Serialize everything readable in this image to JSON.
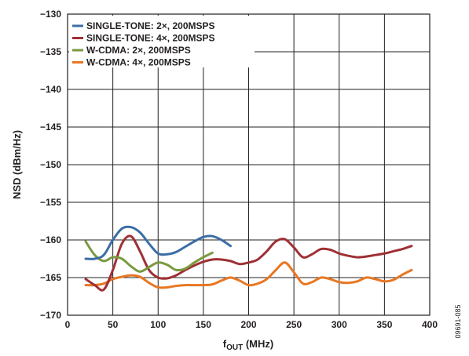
{
  "chart_data": {
    "type": "line",
    "title": "",
    "xlabel_main": "f",
    "xlabel_sub": "OUT",
    "xlabel_unit": " (MHz)",
    "ylabel": "NSD (dBm/Hz)",
    "xlim": [
      0,
      400
    ],
    "ylim": [
      -170,
      -130
    ],
    "xticks": [
      0,
      50,
      100,
      150,
      200,
      250,
      300,
      350,
      400
    ],
    "yticks": [
      -130,
      -135,
      -140,
      -145,
      -150,
      -155,
      -160,
      -165,
      -170
    ],
    "xtick_labels": [
      "0",
      "50",
      "100",
      "150",
      "200",
      "250",
      "300",
      "350",
      "400"
    ],
    "ytick_labels": [
      "−130",
      "−135",
      "−140",
      "−145",
      "−150",
      "−155",
      "−160",
      "−165",
      "−170"
    ],
    "grid": true,
    "legend_position": "top-left",
    "figure_note": "09691-085",
    "series": [
      {
        "name": "SINGLE-TONE: 2×, 200MSPS",
        "color": "#3a6ea5",
        "x": [
          20,
          30,
          40,
          50,
          60,
          70,
          80,
          90,
          100,
          110,
          120,
          130,
          140,
          150,
          160,
          170,
          180
        ],
        "y": [
          -162.5,
          -162.5,
          -162.0,
          -160.0,
          -158.5,
          -158.3,
          -159.0,
          -160.5,
          -161.8,
          -161.9,
          -161.6,
          -160.9,
          -160.2,
          -159.6,
          -159.5,
          -160.0,
          -160.8
        ]
      },
      {
        "name": "SINGLE-TONE: 4×, 200MSPS",
        "color": "#9e3035",
        "x": [
          20,
          30,
          40,
          50,
          60,
          70,
          80,
          90,
          100,
          110,
          120,
          130,
          140,
          150,
          160,
          170,
          180,
          190,
          200,
          210,
          220,
          230,
          240,
          250,
          260,
          270,
          280,
          290,
          300,
          310,
          320,
          330,
          340,
          350,
          360,
          370,
          380
        ],
        "y": [
          -165.2,
          -166.0,
          -166.6,
          -164.0,
          -160.5,
          -159.5,
          -161.5,
          -164.0,
          -165.0,
          -165.1,
          -164.7,
          -164.0,
          -163.4,
          -162.9,
          -162.6,
          -162.6,
          -162.8,
          -163.2,
          -163.0,
          -162.6,
          -161.5,
          -160.2,
          -159.9,
          -161.0,
          -162.3,
          -161.9,
          -161.2,
          -161.3,
          -161.8,
          -162.1,
          -162.3,
          -162.2,
          -162.0,
          -161.8,
          -161.5,
          -161.2,
          -160.8
        ]
      },
      {
        "name": "W-CDMA: 2×, 200MSPS",
        "color": "#7a9a3f",
        "x": [
          20,
          30,
          40,
          50,
          60,
          70,
          80,
          90,
          100,
          110,
          120,
          130,
          140,
          150,
          160
        ],
        "y": [
          -160.2,
          -162.0,
          -162.8,
          -162.3,
          -162.5,
          -163.5,
          -164.2,
          -163.6,
          -163.0,
          -163.3,
          -164.0,
          -163.8,
          -163.0,
          -162.3,
          -161.7
        ]
      },
      {
        "name": "W-CDMA: 4×, 200MSPS",
        "color": "#e87722",
        "x": [
          20,
          30,
          40,
          50,
          60,
          70,
          80,
          90,
          100,
          110,
          120,
          130,
          140,
          150,
          160,
          170,
          180,
          190,
          200,
          210,
          220,
          230,
          240,
          250,
          260,
          270,
          280,
          290,
          300,
          310,
          320,
          330,
          340,
          350,
          360,
          370,
          380
        ],
        "y": [
          -166.0,
          -166.0,
          -165.8,
          -165.2,
          -164.9,
          -164.7,
          -164.9,
          -165.7,
          -166.3,
          -166.3,
          -166.1,
          -166.0,
          -166.0,
          -166.0,
          -165.9,
          -165.4,
          -165.0,
          -165.4,
          -166.0,
          -165.8,
          -165.2,
          -164.0,
          -163.0,
          -164.3,
          -165.8,
          -165.6,
          -165.0,
          -165.2,
          -165.6,
          -165.7,
          -165.5,
          -165.0,
          -165.2,
          -165.5,
          -165.3,
          -164.6,
          -164.0
        ]
      }
    ]
  }
}
